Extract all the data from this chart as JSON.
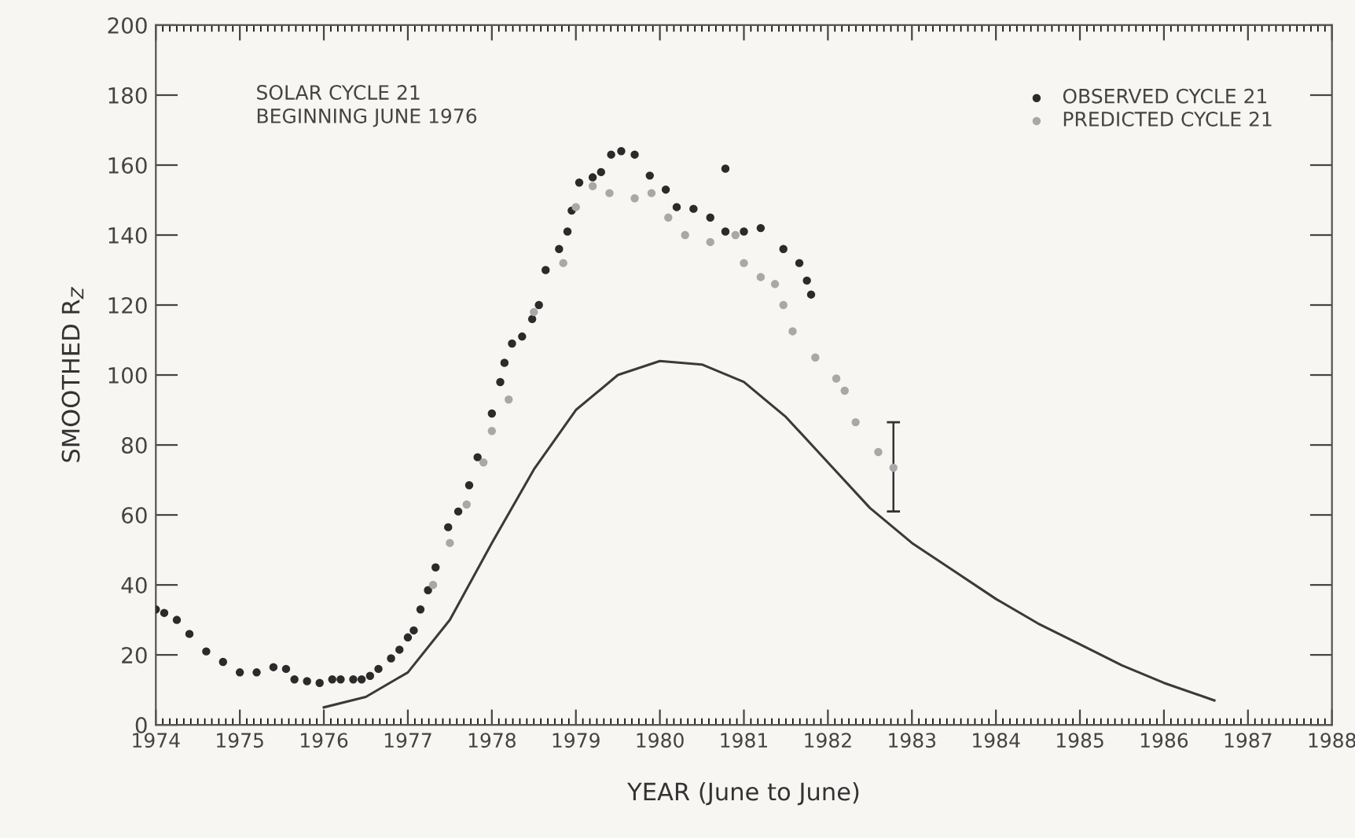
{
  "chart_data": {
    "type": "scatter",
    "xlabel": "YEAR (June to June)",
    "ylabel": "SMOOTHED R$_{Z}$",
    "annotations": [
      "SOLAR CYCLE 21\nBEGINNING JUNE 1976"
    ],
    "xlim": [
      1974,
      1988
    ],
    "xticks": [
      1974,
      1975,
      1976,
      1977,
      1978,
      1979,
      1980,
      1981,
      1982,
      1983,
      1984,
      1985,
      1986,
      1987,
      1988
    ],
    "ylim": [
      0,
      200
    ],
    "yticks": [
      0,
      20,
      40,
      60,
      80,
      100,
      120,
      140,
      160,
      180,
      200
    ],
    "grid": false,
    "legend": "top right",
    "marker": "circle",
    "series": [
      {
        "name": "OBSERVED CYCLE 21",
        "type": "scatter",
        "color": "#2b2b2b",
        "x": [
          1974.0,
          1974.1,
          1974.25,
          1974.4,
          1974.6,
          1974.8,
          1975.0,
          1975.2,
          1975.4,
          1975.55,
          1975.65,
          1975.8,
          1975.95,
          1976.1,
          1976.2,
          1976.35,
          1976.45,
          1976.55,
          1976.65,
          1976.8,
          1976.9,
          1977.0,
          1977.07,
          1977.15,
          1977.24,
          1977.33,
          1977.48,
          1977.6,
          1977.73,
          1977.83,
          1978.0,
          1978.1,
          1978.15,
          1978.24,
          1978.36,
          1978.48,
          1978.56,
          1978.64,
          1978.8,
          1978.9,
          1978.95,
          1979.04,
          1979.2,
          1979.3,
          1979.42,
          1979.54,
          1979.7,
          1979.88,
          1980.07,
          1980.2,
          1980.4,
          1980.6,
          1980.78,
          1981.0,
          1981.2,
          1981.47,
          1981.66,
          1981.75,
          1981.8,
          1980.78
        ],
        "values": [
          33,
          32,
          30,
          26,
          21,
          18,
          15,
          15,
          16.5,
          16,
          13,
          12.5,
          12,
          13,
          13,
          13,
          13,
          14,
          16,
          19,
          21.5,
          25,
          27,
          33,
          38.5,
          45,
          56.5,
          61,
          68.5,
          76.5,
          89,
          98,
          103.5,
          109,
          111,
          116,
          120,
          130,
          136,
          141,
          147,
          155,
          156.5,
          158,
          163,
          164,
          163,
          157,
          153,
          148,
          147.5,
          145,
          141,
          141,
          142,
          136,
          132,
          127,
          123,
          159
        ]
      },
      {
        "name": "PREDICTED CYCLE 21",
        "type": "scatter",
        "color": "#a8a8a8",
        "x": [
          1977.3,
          1977.5,
          1977.7,
          1977.9,
          1978.0,
          1978.2,
          1978.5,
          1978.85,
          1979.0,
          1979.2,
          1979.4,
          1979.7,
          1979.9,
          1980.1,
          1980.3,
          1980.6,
          1980.9,
          1981.0,
          1981.2,
          1981.37,
          1981.47,
          1981.58,
          1981.85,
          1982.1,
          1982.2,
          1982.33,
          1982.6,
          1982.78
        ],
        "values": [
          40,
          52,
          63,
          75,
          84,
          93,
          118,
          132,
          148,
          154,
          152,
          150.5,
          152,
          145,
          140,
          138,
          140,
          132,
          128,
          126,
          120,
          112.5,
          105,
          99,
          95.5,
          86.5,
          78,
          73.5
        ],
        "errors": [
          null,
          null,
          null,
          null,
          null,
          null,
          null,
          null,
          null,
          null,
          null,
          null,
          null,
          null,
          null,
          null,
          null,
          null,
          null,
          null,
          null,
          null,
          null,
          null,
          null,
          null,
          null,
          [
            61,
            86.5
          ]
        ]
      },
      {
        "type": "line",
        "marker": "none",
        "color": "#3a3a3a",
        "x": [
          1976.0,
          1976.5,
          1977.0,
          1977.5,
          1978.0,
          1978.5,
          1979.0,
          1979.5,
          1980.0,
          1980.5,
          1981.0,
          1981.5,
          1982.0,
          1982.5,
          1983.0,
          1983.5,
          1984.0,
          1984.5,
          1985.0,
          1985.5,
          1986.0,
          1986.6
        ],
        "values": [
          5,
          8,
          15,
          30,
          52,
          73,
          90,
          100,
          104,
          103,
          98,
          88,
          75,
          62,
          52,
          44,
          36,
          29,
          23,
          17,
          12,
          7
        ]
      }
    ]
  }
}
